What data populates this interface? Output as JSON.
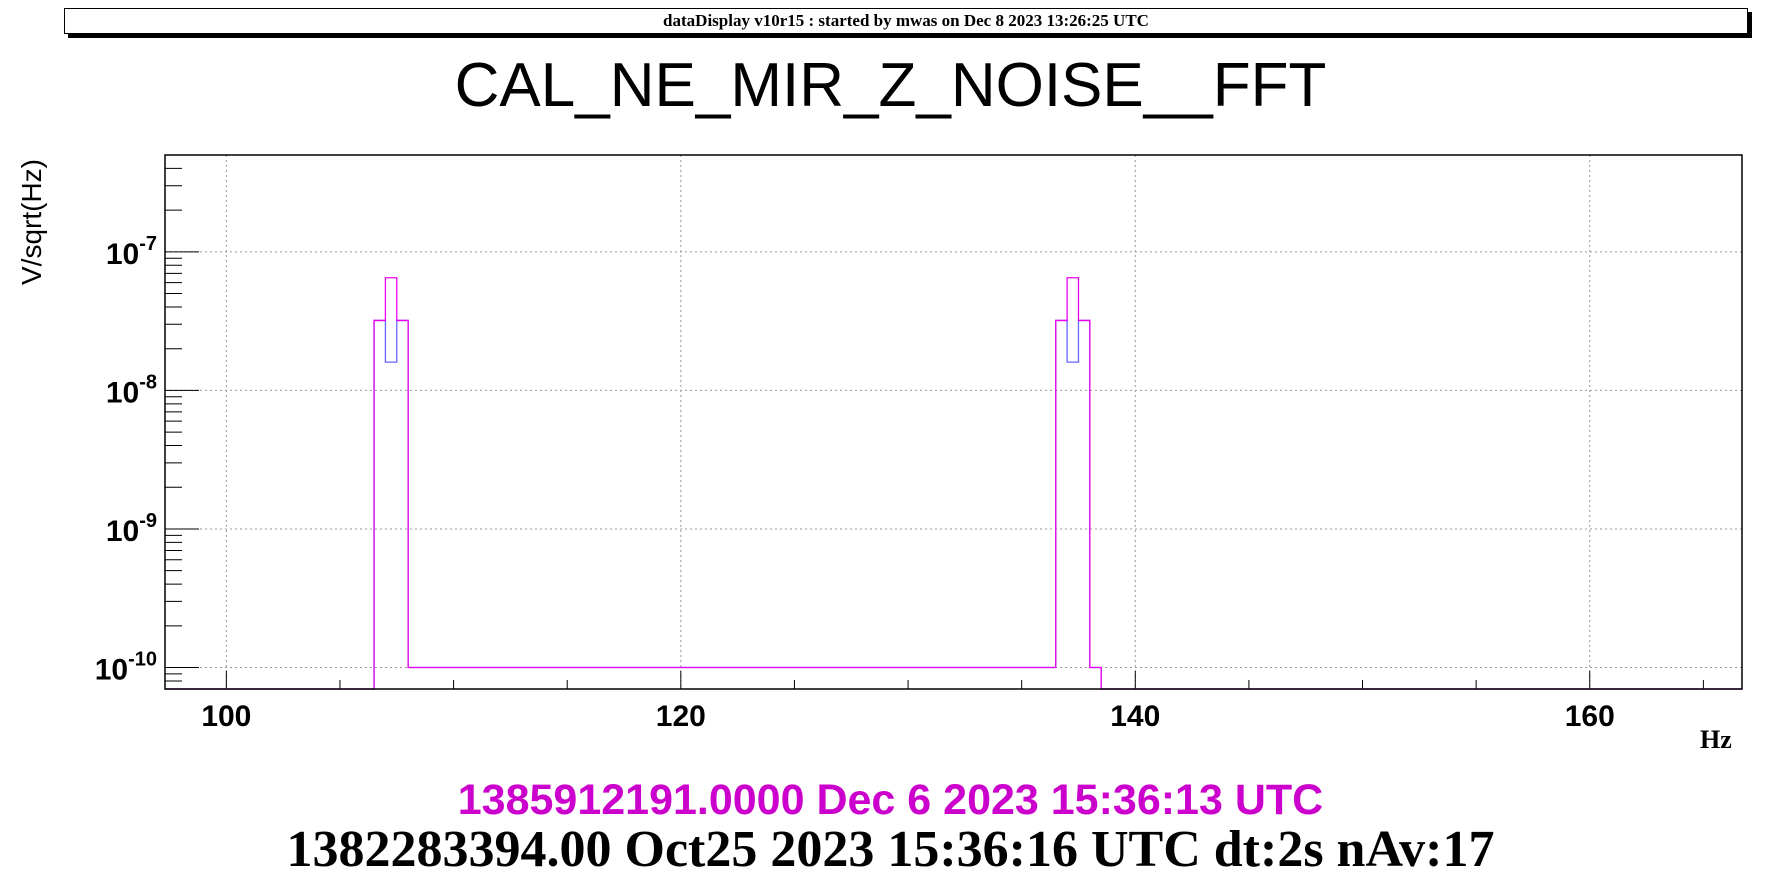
{
  "banner": {
    "text": "dataDisplay v10r15 : started by mwas on Dec  8 2023 13:26:25 UTC"
  },
  "footer": {
    "line1": "1385912191.0000 Dec 6 2023 15:36:13 UTC",
    "line1_color": "#cc00cc",
    "line2": "1382283394.00 Oct25 2023 15:36:16 UTC dt:2s nAv:17"
  },
  "chart_data": {
    "type": "line",
    "title": "CAL_NE_MIR_Z_NOISE__FFT",
    "xlabel": "Hz",
    "ylabel": "V/sqrt(Hz)",
    "xlim": [
      97.3,
      166.7
    ],
    "ylim": [
      7e-11,
      5e-07
    ],
    "yscale": "log",
    "grid": true,
    "x_ticks": [
      "100",
      "120",
      "140",
      "160"
    ],
    "y_ticks": [
      {
        "base": "10",
        "exp": "-10"
      },
      {
        "base": "10",
        "exp": "-9"
      },
      {
        "base": "10",
        "exp": "-8"
      },
      {
        "base": "10",
        "exp": "-7"
      }
    ],
    "series": [
      {
        "color": "#6666ff",
        "x": [
          106.75,
          107.25,
          107.75,
          108.25,
          136.75,
          137.25,
          137.75,
          138.25
        ],
        "y": [
          3.2e-08,
          1.6e-08,
          3.2e-08,
          1e-10,
          3.2e-08,
          1.6e-08,
          3.2e-08,
          1e-10
        ]
      },
      {
        "color": "#ee00ee",
        "x": [
          106.75,
          107.25,
          107.75,
          108.25,
          136.75,
          137.25,
          137.75,
          138.25
        ],
        "y": [
          3.2e-08,
          6.5e-08,
          3.2e-08,
          1e-10,
          3.2e-08,
          6.5e-08,
          3.2e-08,
          1e-10
        ]
      }
    ]
  }
}
